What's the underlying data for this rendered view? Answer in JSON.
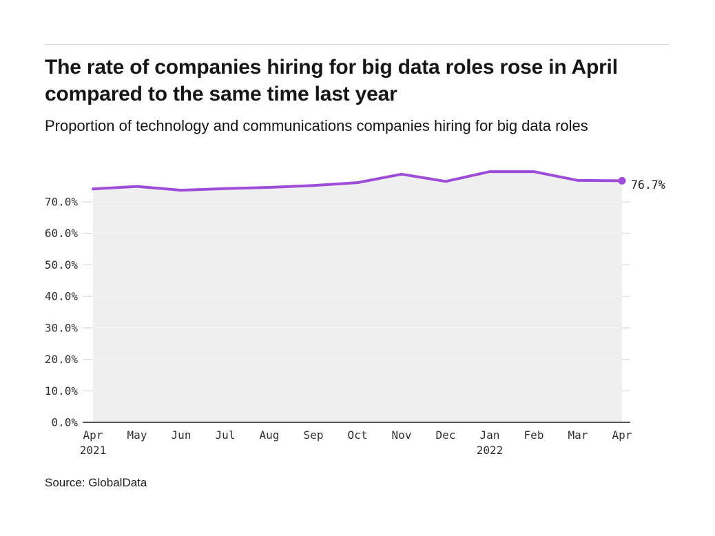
{
  "header": {
    "title": "The rate of companies hiring for big data roles rose in April compared to the same time last year",
    "subtitle": "Proportion of technology and communications companies hiring for big data roles"
  },
  "chart_data": {
    "type": "area",
    "title": "The rate of companies hiring for big data roles rose in April compared to the same time last year",
    "subtitle": "Proportion of technology and communications companies hiring for big data roles",
    "categories": [
      "Apr",
      "May",
      "Jun",
      "Jul",
      "Aug",
      "Sep",
      "Oct",
      "Nov",
      "Dec",
      "Jan",
      "Feb",
      "Mar",
      "Apr"
    ],
    "year_labels": [
      {
        "index": 0,
        "label": "2021"
      },
      {
        "index": 9,
        "label": "2022"
      }
    ],
    "values": [
      74.1,
      74.9,
      73.7,
      74.2,
      74.6,
      75.2,
      76.1,
      78.8,
      76.5,
      79.6,
      79.6,
      76.8,
      76.7
    ],
    "end_label": "76.7%",
    "yticks": [
      {
        "value": 0,
        "label": "0.0%"
      },
      {
        "value": 10,
        "label": "10.0%"
      },
      {
        "value": 20,
        "label": "20.0%"
      },
      {
        "value": 30,
        "label": "30.0%"
      },
      {
        "value": 40,
        "label": "40.0%"
      },
      {
        "value": 50,
        "label": "50.0%"
      },
      {
        "value": 60,
        "label": "60.0%"
      },
      {
        "value": 70,
        "label": "70.0%"
      }
    ],
    "ylim": [
      0,
      80
    ],
    "xlabel": "",
    "ylabel": "",
    "grid": true,
    "legend": "none",
    "line_color": "#9e4dd8",
    "marker_color": "#9e4dd8",
    "fill_color": "#efefef",
    "gridline_color": "#dbdbdb",
    "inner_gridline_color": "#f5f5f5",
    "baseline_color": "#3c3c3c"
  },
  "footer": {
    "source": "Source: GlobalData"
  }
}
